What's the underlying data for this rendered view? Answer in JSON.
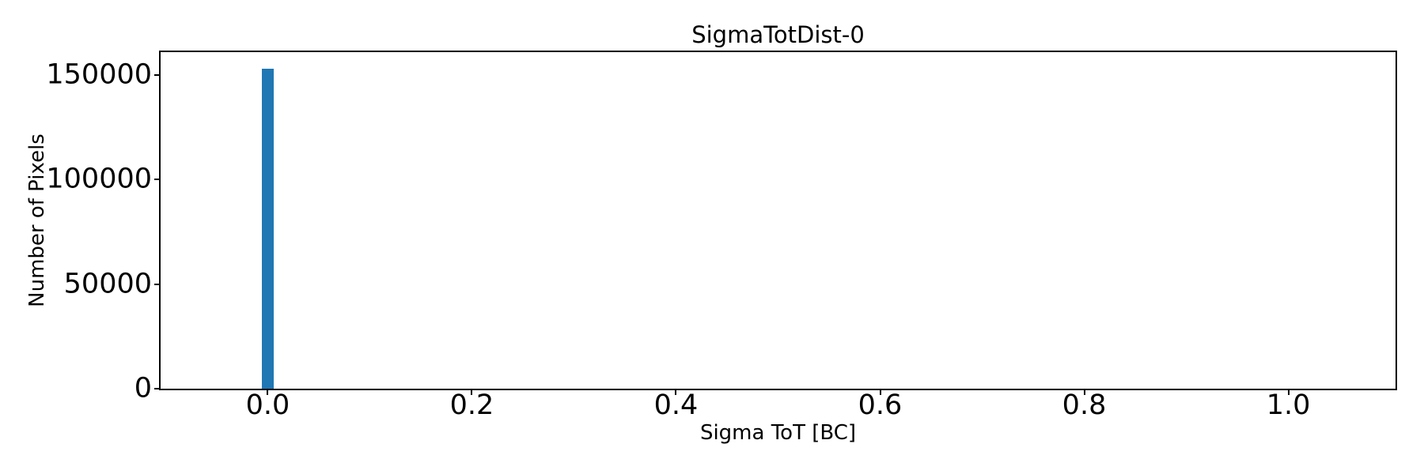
{
  "chart_data": {
    "type": "bar",
    "title": "SigmaTotDist-0",
    "xlabel": "Sigma ToT [BC]",
    "ylabel": "Number of Pixels",
    "xlim": [
      -0.105,
      1.105
    ],
    "ylim": [
      0,
      161000
    ],
    "x_ticks": [
      0.0,
      0.2,
      0.4,
      0.6,
      0.8,
      1.0
    ],
    "x_tick_labels": [
      "0.0",
      "0.2",
      "0.4",
      "0.6",
      "0.8",
      "1.0"
    ],
    "y_ticks": [
      0,
      50000,
      100000,
      150000
    ],
    "y_tick_labels": [
      "0",
      "50000",
      "100000",
      "150000"
    ],
    "bars": [
      {
        "x": 0.0,
        "width": 0.0116,
        "count": 153000
      }
    ],
    "bar_color": "#1f77b4",
    "axis_color": "#000000",
    "text_color": "#000000",
    "background_color": "#ffffff",
    "grid": false,
    "legend": "none"
  }
}
